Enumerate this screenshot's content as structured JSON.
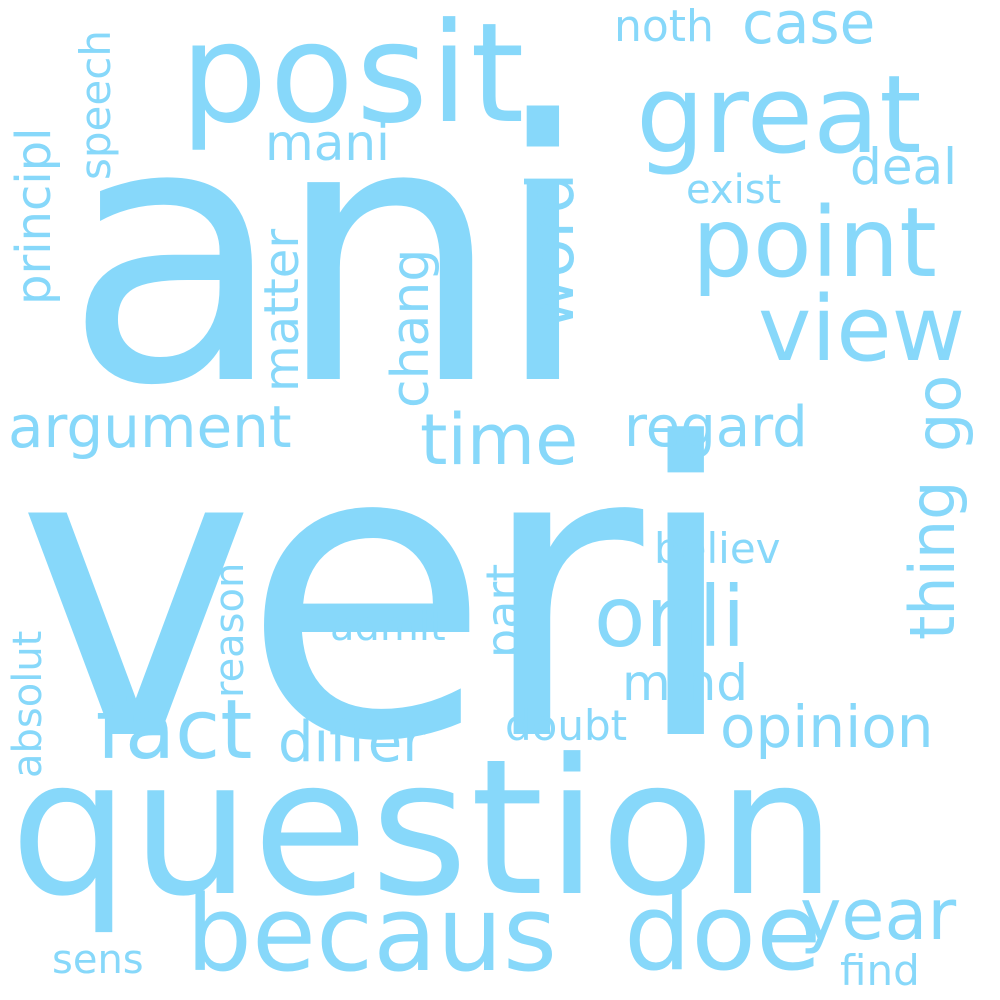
{
  "word_color": "#87d8fa",
  "background_color": "#ffffff",
  "words": {
    "veri": "veri",
    "ani": "ani",
    "question": "question",
    "posit": "posit",
    "great": "great",
    "point": "point",
    "view": "view",
    "becaus": "becaus",
    "doe": "doe",
    "onli": "onli",
    "fact": "fact",
    "year": "year",
    "time": "time",
    "thing": "thing",
    "regard": "regard",
    "differ": "differ",
    "opinion": "opinion",
    "argument": "argument",
    "word": "word",
    "case": "case",
    "matter": "matter",
    "chang": "chang",
    "mani": "mani",
    "deal": "deal",
    "exist": "exist",
    "noth": "noth",
    "principl": "principl",
    "speech": "speech",
    "mind": "mind",
    "part": "part",
    "believ": "believ",
    "admit": "admit",
    "reason": "reason",
    "absolut": "absolut",
    "doubt": "doubt",
    "find": "find",
    "sens": "sens",
    "go": "go"
  }
}
